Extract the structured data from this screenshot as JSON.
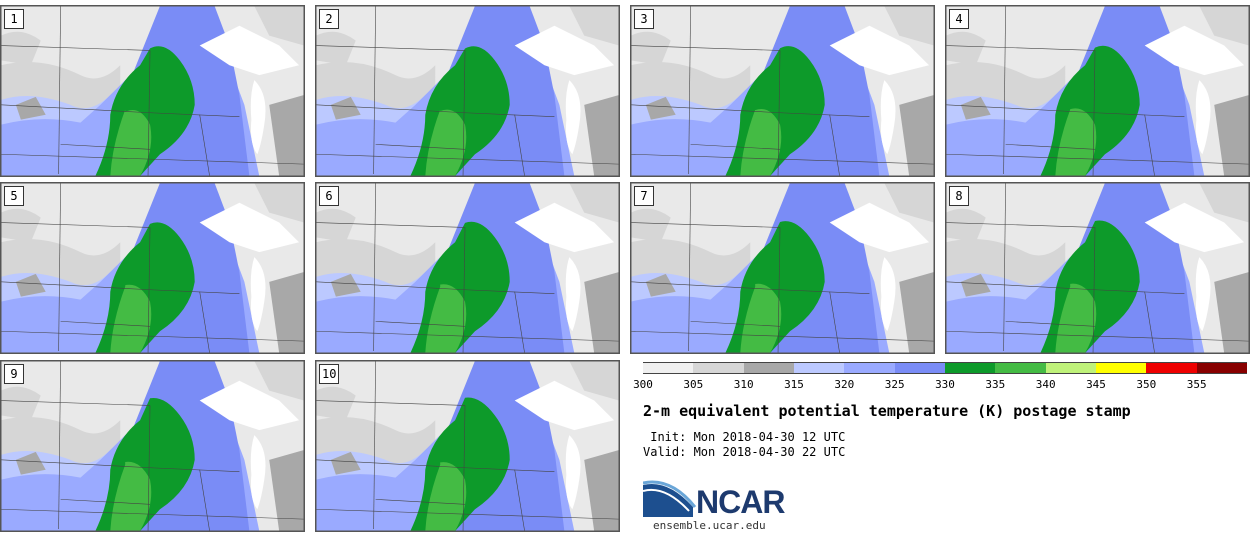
{
  "panels": [
    {
      "label": "1"
    },
    {
      "label": "2"
    },
    {
      "label": "3"
    },
    {
      "label": "4"
    },
    {
      "label": "5"
    },
    {
      "label": "6"
    },
    {
      "label": "7"
    },
    {
      "label": "8"
    },
    {
      "label": "9"
    },
    {
      "label": "10"
    }
  ],
  "colorbar": {
    "colors": [
      "#f0f0f0",
      "#d6d6d6",
      "#a8a8a8",
      "#bcc9ff",
      "#9aaaff",
      "#7a8cf6",
      "#0d9a2a",
      "#44bb44",
      "#bff27a",
      "#ffff00",
      "#ee0000",
      "#880000"
    ],
    "ticks": [
      "300",
      "305",
      "310",
      "315",
      "320",
      "325",
      "330",
      "335",
      "340",
      "345",
      "350",
      "355"
    ]
  },
  "title": "2-m equivalent potential temperature (K) postage stamp",
  "init": " Init: Mon 2018-04-30 12 UTC",
  "valid": "Valid: Mon 2018-04-30 22 UTC",
  "logo": {
    "text": "NCAR",
    "url": "ensemble.ucar.edu",
    "color": "#1d3a6e"
  }
}
